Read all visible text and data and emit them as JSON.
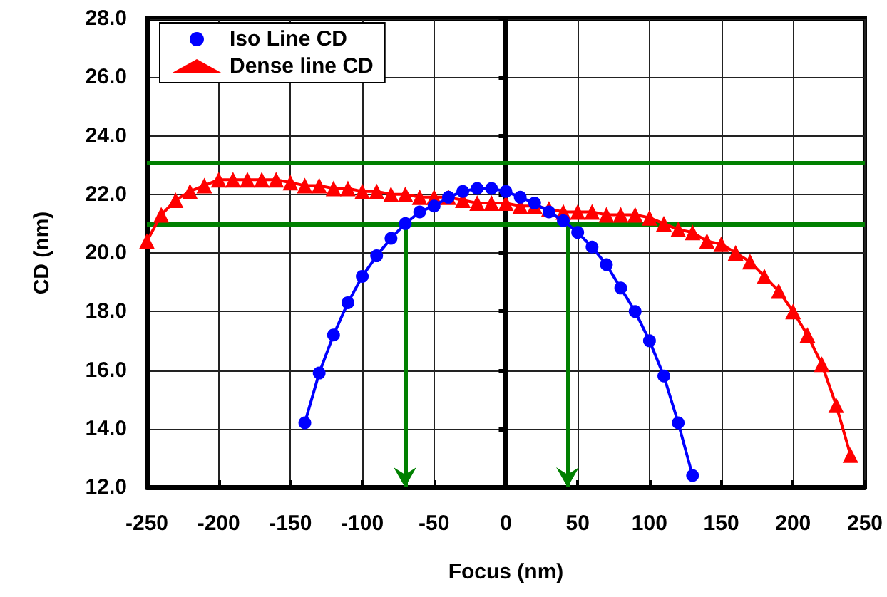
{
  "chart_data": {
    "type": "line",
    "xlabel": "Focus (nm)",
    "ylabel": "CD (nm)",
    "xlim": [
      -250,
      250
    ],
    "xticks": [
      -250,
      -200,
      -150,
      -100,
      -50,
      0,
      50,
      100,
      150,
      200,
      250
    ],
    "ylim": [
      12,
      28
    ],
    "yticks": [
      {
        "value": 12,
        "label": "12.0"
      },
      {
        "value": 14,
        "label": "14.0"
      },
      {
        "value": 16,
        "label": "16.0"
      },
      {
        "value": 18,
        "label": "18.0"
      },
      {
        "value": 20,
        "label": "20.0"
      },
      {
        "value": 22,
        "label": "22.0"
      },
      {
        "value": 24,
        "label": "24.0"
      },
      {
        "value": 26,
        "label": "26.0"
      },
      {
        "value": 28,
        "label": "28.0"
      }
    ],
    "grid": true,
    "legend": "top left",
    "line_style": "solid",
    "series": [
      {
        "name": "Iso Line CD",
        "color": "#0000ff",
        "marker": "circle",
        "x": [
          -140,
          -130,
          -120,
          -110,
          -100,
          -90,
          -80,
          -70,
          -60,
          -50,
          -40,
          -30,
          -20,
          -10,
          0,
          10,
          20,
          30,
          40,
          50,
          60,
          70,
          80,
          90,
          100,
          110,
          120,
          130
        ],
        "values": [
          14.2,
          15.9,
          17.2,
          18.3,
          19.2,
          19.9,
          20.5,
          21.0,
          21.4,
          21.6,
          21.9,
          22.1,
          22.2,
          22.2,
          22.1,
          21.9,
          21.7,
          21.4,
          21.1,
          20.7,
          20.2,
          19.6,
          18.8,
          18.0,
          17.0,
          15.8,
          14.2,
          12.4
        ]
      },
      {
        "name": "Dense line CD",
        "color": "#ff0000",
        "marker": "triangle",
        "x": [
          -250,
          -240,
          -230,
          -220,
          -210,
          -200,
          -190,
          -180,
          -170,
          -160,
          -150,
          -140,
          -130,
          -120,
          -110,
          -100,
          -90,
          -80,
          -70,
          -60,
          -50,
          -40,
          -30,
          -20,
          -10,
          0,
          10,
          20,
          30,
          40,
          50,
          60,
          70,
          80,
          90,
          100,
          110,
          120,
          130,
          140,
          150,
          160,
          170,
          180,
          190,
          200,
          210,
          220,
          230,
          240
        ],
        "values": [
          20.4,
          21.3,
          21.8,
          22.1,
          22.3,
          22.5,
          22.5,
          22.5,
          22.5,
          22.5,
          22.4,
          22.3,
          22.3,
          22.2,
          22.2,
          22.1,
          22.1,
          22.0,
          22.0,
          21.9,
          21.9,
          21.9,
          21.8,
          21.7,
          21.7,
          21.7,
          21.6,
          21.6,
          21.5,
          21.4,
          21.4,
          21.4,
          21.3,
          21.3,
          21.3,
          21.2,
          21.0,
          20.8,
          20.7,
          20.4,
          20.3,
          20.0,
          19.7,
          19.2,
          18.7,
          18.0,
          17.2,
          16.2,
          14.8,
          13.1
        ]
      }
    ],
    "ref_lines": [
      {
        "axis": "y",
        "value": 23.1,
        "color": "#008000"
      },
      {
        "axis": "y",
        "value": 21.0,
        "color": "#008000"
      },
      {
        "axis": "x",
        "value": -70,
        "color": "#008000"
      },
      {
        "axis": "x",
        "value": 43,
        "color": "#008000"
      }
    ]
  }
}
